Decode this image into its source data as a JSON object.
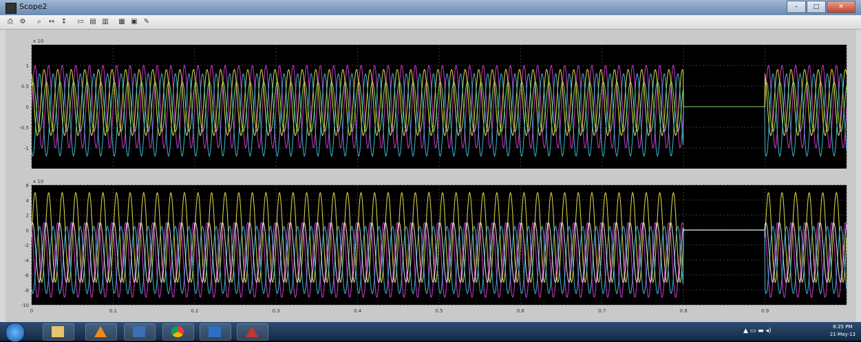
{
  "window": {
    "title": "Scope2"
  },
  "icons": {
    "print": "printer-icon",
    "params": "parameters-icon",
    "zoom": "zoom-icon",
    "zoom_x": "zoom-x-icon",
    "zoom_y": "zoom-y-icon",
    "autoscale": "autoscale-icon",
    "save": "save-axes-icon",
    "restore": "restore-axes-icon",
    "float": "floating-scope-icon",
    "lock": "lock-axes-icon",
    "select": "signal-selection-icon"
  },
  "colors": {
    "plot_bg": "#000000",
    "axes_bg": "#c8c8c8",
    "grid": "#3a3a3a",
    "magenta": "#d43bd4",
    "yellow": "#e8e44a",
    "cyan": "#3fb8d8",
    "green": "#8fe05a",
    "orange": "#f0a030",
    "white": "#e6e6e6"
  },
  "chart_data": [
    {
      "type": "line",
      "title": "",
      "xlim": [
        0,
        1.0
      ],
      "ylim": [
        -1.5,
        1.5
      ],
      "y_exponent": "x 10",
      "yticks": [
        "1",
        "0.5",
        "0",
        "-0.5",
        "-1"
      ],
      "grid": true,
      "series": [
        {
          "color": "magenta",
          "amplitude": 1.0,
          "offset": 0.0,
          "phase": 0.0
        },
        {
          "color": "yellow",
          "amplitude": 0.8,
          "offset": 0.1,
          "phase": 2.09
        },
        {
          "color": "cyan",
          "amplitude": 1.0,
          "offset": -0.2,
          "phase": 4.19
        },
        {
          "color": "green",
          "amplitude": 0.6,
          "offset": 0.0,
          "phase": 1.0
        }
      ],
      "segments": {
        "oscillation_end": 0.8,
        "flat_value": 0.0,
        "resume": 0.9
      }
    },
    {
      "type": "line",
      "title": "",
      "xlim": [
        0,
        1.0
      ],
      "ylim": [
        -10,
        6
      ],
      "y_exponent": "x 10",
      "yticks": [
        "6",
        "4",
        "2",
        "0",
        "-2",
        "-4",
        "-6",
        "-8",
        "-10"
      ],
      "xticks": [
        "0",
        "0.1",
        "0.2",
        "0.3",
        "0.4",
        "0.5",
        "0.6",
        "0.7",
        "0.8",
        "0.9"
      ],
      "grid": true,
      "series": [
        {
          "color": "yellow",
          "amplitude": 6.0,
          "offset": -1.0,
          "phase": 0.0
        },
        {
          "color": "magenta",
          "amplitude": 5.0,
          "offset": -4.0,
          "phase": 2.09
        },
        {
          "color": "cyan",
          "amplitude": 4.5,
          "offset": -4.0,
          "phase": 4.19
        },
        {
          "color": "white",
          "amplitude": 4.0,
          "offset": -3.0,
          "phase": 1.2
        }
      ],
      "segments": {
        "oscillation_end": 0.8,
        "flat_value": 0.0,
        "resume": 0.9
      }
    }
  ],
  "taskbar": {
    "apps": [
      "explorer",
      "vlc",
      "media-player",
      "chrome",
      "remote-desktop",
      "matlab"
    ],
    "time": "6:25 PM",
    "date": "21-May-13"
  }
}
